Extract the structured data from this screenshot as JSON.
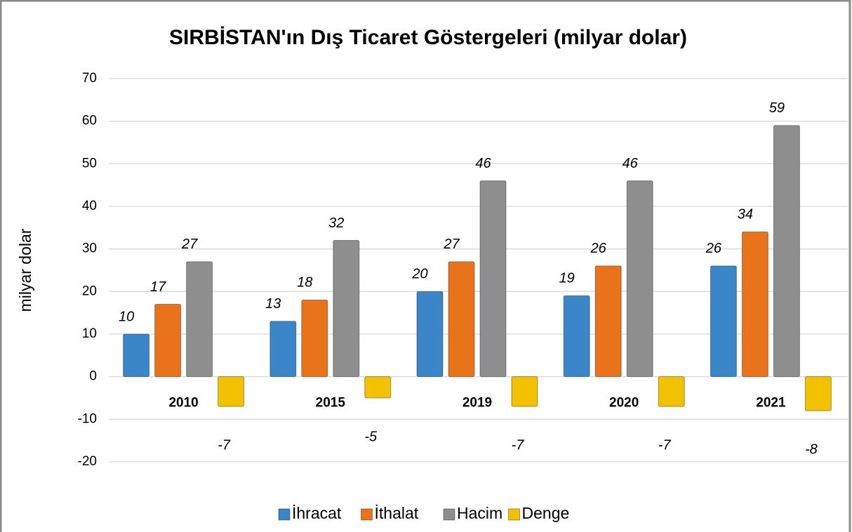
{
  "chart_data": {
    "type": "bar",
    "title": "SIRBİSTAN'ın Dış Ticaret Göstergeleri  (milyar dolar)",
    "y_label": "milyar dolar",
    "categories": [
      "2010",
      "2015",
      "2019",
      "2020",
      "2021"
    ],
    "series": [
      {
        "name": "İhracat",
        "color": "#3b86c8",
        "values": [
          10,
          13,
          20,
          19,
          26
        ]
      },
      {
        "name": "İthalat",
        "color": "#e8731a",
        "values": [
          17,
          18,
          27,
          26,
          34
        ]
      },
      {
        "name": "Hacim",
        "color": "#8e8e8e",
        "values": [
          27,
          32,
          46,
          46,
          59
        ]
      },
      {
        "name": "Denge",
        "color": "#f2c200",
        "values": [
          -7,
          -5,
          -7,
          -7,
          -8
        ]
      }
    ],
    "ylim": [
      -20,
      70
    ],
    "yticks": [
      -20,
      -10,
      0,
      10,
      20,
      30,
      40,
      50,
      60,
      70
    ],
    "grid": true,
    "legend": "bottom"
  }
}
